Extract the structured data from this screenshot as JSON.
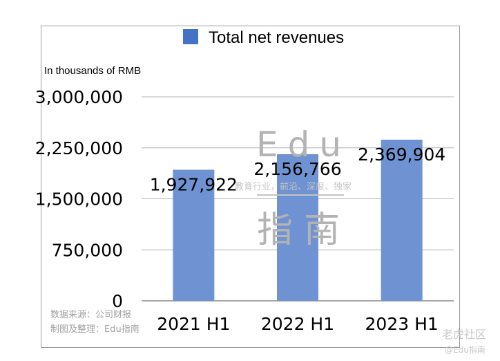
{
  "chart_data": {
    "type": "bar",
    "categories": [
      "2021 H1",
      "2022 H1",
      "2023 H1"
    ],
    "series": [
      {
        "name": "Total net revenues",
        "values": [
          1927922,
          2156766,
          2369904
        ],
        "color": "#6f93d2"
      }
    ],
    "data_labels": [
      "1,927,922",
      "2,156,766",
      "2,369,904"
    ],
    "ylabel": "In thousands of RMB",
    "ylim": [
      0,
      3000000
    ],
    "yticks": [
      0,
      750000,
      1500000,
      2250000,
      3000000
    ],
    "ytick_labels": [
      "0",
      "750,000",
      "1,500,000",
      "2,250,000",
      "3,000,000"
    ],
    "grid": true,
    "legend": "top",
    "legend_color": "#4472c4"
  },
  "watermarks": {
    "center_big": "Edu",
    "center_big2": "指南",
    "center_small": "教育行业，前沿、深度、独家",
    "source_line1": "数据来源：公司财报",
    "source_line2": "制图及整理：Edu指南",
    "corner1": "老虎社区",
    "corner2": "@Edu指南"
  }
}
